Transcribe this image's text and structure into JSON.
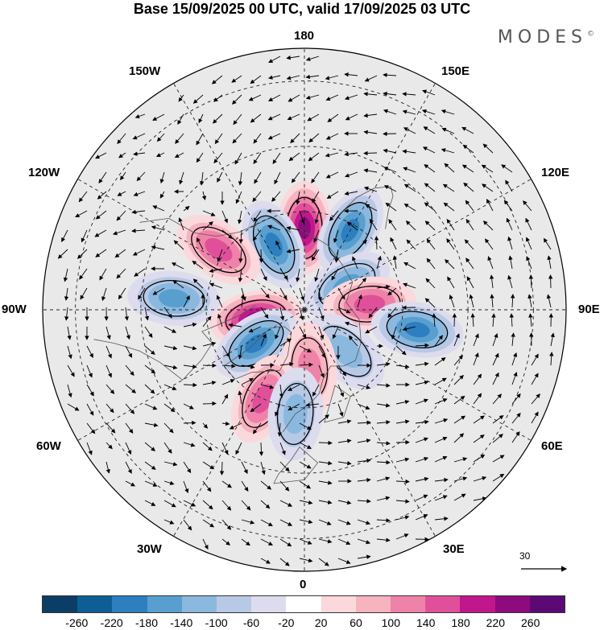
{
  "title": "Base 15/09/2025 00 UTC, valid 17/09/2025 03 UTC",
  "logo": "MODES",
  "logo_mark": "©",
  "longitude_labels": {
    "top": "180",
    "bottom": "0",
    "left": "90W",
    "right": "90E",
    "upper_left_inner": "150W",
    "upper_right_inner": "150E",
    "upper_left_outer": "120W",
    "upper_right_outer": "120E",
    "lower_left_outer": "60W",
    "lower_right_outer": "60E",
    "lower_left_inner": "30W",
    "lower_right_inner": "30E"
  },
  "vector_scale": {
    "label": "30"
  },
  "colorbar": {
    "colors": [
      "#0b3e66",
      "#0e5e96",
      "#2d7fbf",
      "#589fd0",
      "#8bb8de",
      "#b8c9e6",
      "#dcdcee",
      "#ffffff",
      "#fbd8dc",
      "#f6b3c0",
      "#ef82a8",
      "#e0509a",
      "#c0188c",
      "#8e0b7e",
      "#5b0a75"
    ],
    "labels": [
      "-260",
      "-220",
      "-180",
      "-140",
      "-100",
      "-60",
      "-20",
      "20",
      "60",
      "100",
      "140",
      "180",
      "220",
      "260"
    ]
  },
  "anomaly_centers": [
    {
      "lon": 180,
      "lat": 65,
      "value": 240
    },
    {
      "lon": 150,
      "lat": 62,
      "value": -200
    },
    {
      "lon": -155,
      "lat": 68,
      "value": -180
    },
    {
      "lon": -125,
      "lat": 58,
      "value": 160
    },
    {
      "lon": -95,
      "lat": 50,
      "value": -140
    },
    {
      "lon": -80,
      "lat": 75,
      "value": 240
    },
    {
      "lon": -55,
      "lat": 72,
      "value": -200
    },
    {
      "lon": 120,
      "lat": 75,
      "value": -140
    },
    {
      "lon": 95,
      "lat": 70,
      "value": 140
    },
    {
      "lon": 80,
      "lat": 55,
      "value": -180
    },
    {
      "lon": 45,
      "lat": 72,
      "value": -100
    },
    {
      "lon": 5,
      "lat": 72,
      "value": 120
    },
    {
      "lon": -25,
      "lat": 60,
      "value": 140
    },
    {
      "lon": -5,
      "lat": 58,
      "value": -120
    }
  ]
}
